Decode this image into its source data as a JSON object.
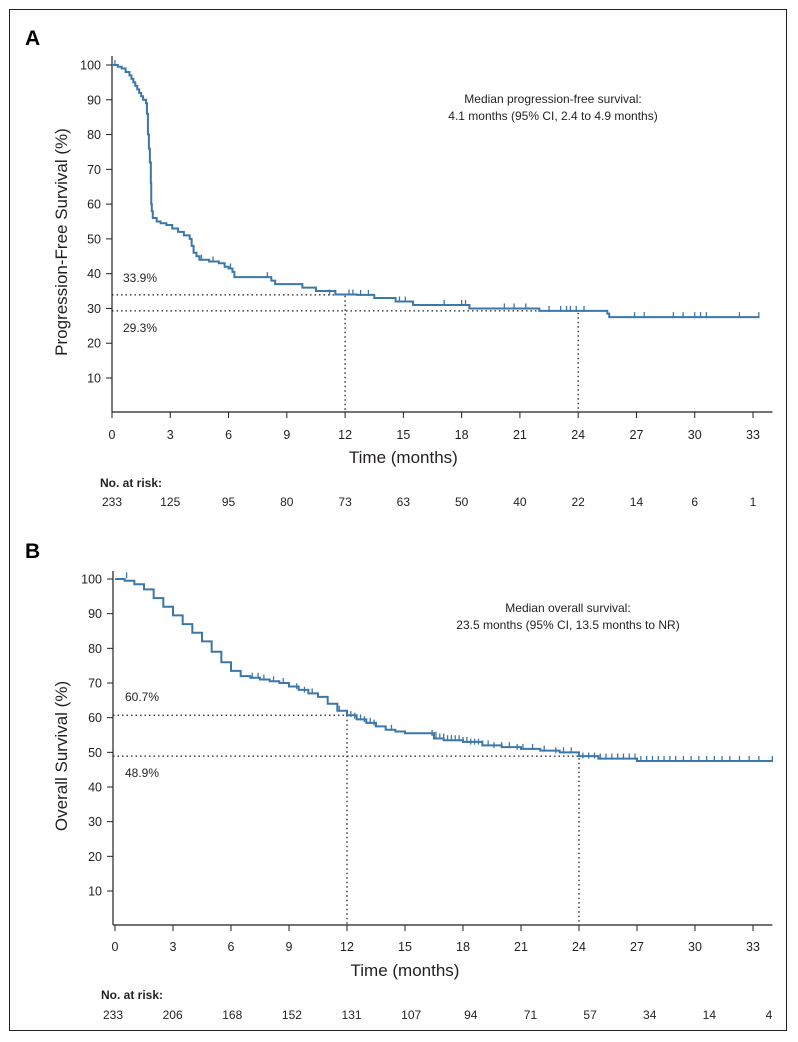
{
  "chart_data": [
    {
      "panel": "A",
      "type": "line",
      "subtype": "kaplan-meier",
      "ylabel": "Progression-Free Survival (%)",
      "xlabel": "Time (months)",
      "xlim": [
        0,
        34
      ],
      "ylim": [
        0,
        100
      ],
      "x_ticks": [
        0,
        3,
        6,
        9,
        12,
        15,
        18,
        21,
        24,
        27,
        30,
        33
      ],
      "y_ticks": [
        10,
        20,
        30,
        40,
        50,
        60,
        70,
        80,
        90,
        100
      ],
      "annotation": [
        "Median progression-free survival:",
        "4.1 months (95% CI, 2.4 to 4.9 months)"
      ],
      "reference_lines": [
        {
          "label": "33.9%",
          "y": 33.9,
          "x": 12
        },
        {
          "label": "29.3%",
          "y": 29.3,
          "x": 24
        }
      ],
      "curve": [
        [
          0,
          100
        ],
        [
          0.3,
          99.5
        ],
        [
          0.5,
          99
        ],
        [
          0.7,
          98
        ],
        [
          0.9,
          97
        ],
        [
          1.0,
          96
        ],
        [
          1.1,
          95
        ],
        [
          1.2,
          94
        ],
        [
          1.3,
          93
        ],
        [
          1.4,
          92
        ],
        [
          1.5,
          91
        ],
        [
          1.6,
          90
        ],
        [
          1.75,
          89
        ],
        [
          1.8,
          86
        ],
        [
          1.85,
          80
        ],
        [
          1.9,
          76
        ],
        [
          1.95,
          72
        ],
        [
          2.0,
          66
        ],
        [
          2.02,
          60
        ],
        [
          2.05,
          58
        ],
        [
          2.1,
          56
        ],
        [
          2.3,
          55
        ],
        [
          2.5,
          54.5
        ],
        [
          2.8,
          54
        ],
        [
          3.1,
          53
        ],
        [
          3.4,
          52
        ],
        [
          3.7,
          51
        ],
        [
          4.0,
          50
        ],
        [
          4.1,
          48
        ],
        [
          4.2,
          46
        ],
        [
          4.35,
          45
        ],
        [
          4.5,
          44
        ],
        [
          5.0,
          43.5
        ],
        [
          5.5,
          43
        ],
        [
          5.8,
          42
        ],
        [
          6.0,
          41.5
        ],
        [
          6.2,
          40.5
        ],
        [
          6.3,
          39
        ],
        [
          8.2,
          38
        ],
        [
          8.4,
          37
        ],
        [
          9.8,
          36
        ],
        [
          10.5,
          35
        ],
        [
          11.5,
          34
        ],
        [
          12.6,
          33.9
        ],
        [
          13.5,
          33
        ],
        [
          14.6,
          32
        ],
        [
          15.5,
          31
        ],
        [
          18.4,
          30
        ],
        [
          22.0,
          29.3
        ],
        [
          25.5,
          28.5
        ],
        [
          25.6,
          27.5
        ],
        [
          33.3,
          27.5
        ]
      ],
      "censors": [
        [
          0.15,
          100
        ],
        [
          4.6,
          44
        ],
        [
          5.2,
          43.5
        ],
        [
          6.1,
          41.5
        ],
        [
          8.0,
          39
        ],
        [
          11.2,
          34
        ],
        [
          12.2,
          34
        ],
        [
          12.4,
          34
        ],
        [
          12.8,
          33.9
        ],
        [
          13.2,
          33.9
        ],
        [
          14.8,
          32
        ],
        [
          15.1,
          32
        ],
        [
          17.1,
          31
        ],
        [
          18.0,
          31
        ],
        [
          18.2,
          31
        ],
        [
          20.2,
          30
        ],
        [
          20.7,
          30
        ],
        [
          21.3,
          30
        ],
        [
          22.5,
          29.3
        ],
        [
          23.1,
          29.3
        ],
        [
          23.4,
          29.3
        ],
        [
          23.6,
          29.3
        ],
        [
          23.9,
          29.3
        ],
        [
          24.3,
          29.3
        ],
        [
          26.9,
          27.5
        ],
        [
          27.4,
          27.5
        ],
        [
          28.9,
          27.5
        ],
        [
          29.4,
          27.5
        ],
        [
          30.0,
          27.5
        ],
        [
          30.3,
          27.5
        ],
        [
          30.6,
          27.5
        ],
        [
          32.3,
          27.5
        ],
        [
          33.3,
          27.5
        ]
      ],
      "risk_table": {
        "title": "No. at risk:",
        "numbers": [
          233,
          125,
          95,
          80,
          73,
          63,
          50,
          40,
          22,
          14,
          6,
          1
        ]
      }
    },
    {
      "panel": "B",
      "type": "line",
      "subtype": "kaplan-meier",
      "ylabel": "Overall Survival (%)",
      "xlabel": "Time (months)",
      "xlim": [
        0,
        34
      ],
      "ylim": [
        0,
        100
      ],
      "x_ticks": [
        0,
        3,
        6,
        9,
        12,
        15,
        18,
        21,
        24,
        27,
        30,
        33
      ],
      "y_ticks": [
        10,
        20,
        30,
        40,
        50,
        60,
        70,
        80,
        90,
        100
      ],
      "annotation": [
        "Median overall survival:",
        "23.5 months (95% CI, 13.5 months to NR)"
      ],
      "reference_lines": [
        {
          "label": "60.7%",
          "y": 60.7,
          "x": 12
        },
        {
          "label": "48.9%",
          "y": 48.9,
          "x": 24
        }
      ],
      "curve": [
        [
          0,
          100
        ],
        [
          0.5,
          99.5
        ],
        [
          1.0,
          98.5
        ],
        [
          1.5,
          97
        ],
        [
          2.0,
          94.5
        ],
        [
          2.5,
          92
        ],
        [
          3.0,
          89.5
        ],
        [
          3.5,
          87
        ],
        [
          4.0,
          84.5
        ],
        [
          4.5,
          82
        ],
        [
          5.0,
          79
        ],
        [
          5.5,
          76
        ],
        [
          6.0,
          73.5
        ],
        [
          6.5,
          72
        ],
        [
          7.0,
          71.5
        ],
        [
          7.5,
          71
        ],
        [
          8.0,
          70.5
        ],
        [
          8.5,
          70
        ],
        [
          9.0,
          69
        ],
        [
          9.5,
          68
        ],
        [
          10.0,
          67
        ],
        [
          10.5,
          66
        ],
        [
          11.0,
          64
        ],
        [
          11.5,
          62
        ],
        [
          12.0,
          60.7
        ],
        [
          12.5,
          59.5
        ],
        [
          13.0,
          58.5
        ],
        [
          13.5,
          57.5
        ],
        [
          14.0,
          56.5
        ],
        [
          14.5,
          56
        ],
        [
          15.0,
          55.5
        ],
        [
          16.0,
          55.5
        ],
        [
          16.5,
          54
        ],
        [
          17.0,
          53.5
        ],
        [
          18.0,
          53
        ],
        [
          19.0,
          52
        ],
        [
          20.0,
          51.5
        ],
        [
          21.0,
          51
        ],
        [
          22.0,
          50.5
        ],
        [
          23.0,
          50
        ],
        [
          24.0,
          48.9
        ],
        [
          25.0,
          48.2
        ],
        [
          27.0,
          47.5
        ],
        [
          34.0,
          47.5
        ]
      ],
      "censors": [
        [
          0.6,
          100.5
        ],
        [
          7.1,
          71.5
        ],
        [
          7.4,
          71.5
        ],
        [
          7.7,
          71
        ],
        [
          8.2,
          70.5
        ],
        [
          8.7,
          70
        ],
        [
          9.4,
          68.5
        ],
        [
          9.8,
          67.5
        ],
        [
          10.2,
          67
        ],
        [
          11.6,
          62
        ],
        [
          12.2,
          60.5
        ],
        [
          12.4,
          60
        ],
        [
          12.7,
          59.5
        ],
        [
          12.9,
          59
        ],
        [
          13.2,
          58.5
        ],
        [
          13.4,
          58
        ],
        [
          14.3,
          56.5
        ],
        [
          16.4,
          55
        ],
        [
          16.6,
          54.5
        ],
        [
          16.8,
          54
        ],
        [
          17.0,
          54
        ],
        [
          17.2,
          53.5
        ],
        [
          17.4,
          53.5
        ],
        [
          17.6,
          53.5
        ],
        [
          17.8,
          53.5
        ],
        [
          18.0,
          53
        ],
        [
          18.2,
          53
        ],
        [
          18.4,
          52.5
        ],
        [
          18.6,
          52.5
        ],
        [
          18.8,
          52.5
        ],
        [
          19.0,
          52
        ],
        [
          19.3,
          52
        ],
        [
          19.6,
          51.5
        ],
        [
          20.0,
          51.5
        ],
        [
          20.4,
          51.5
        ],
        [
          20.8,
          51
        ],
        [
          21.1,
          51
        ],
        [
          21.6,
          51
        ],
        [
          22.2,
          50.5
        ],
        [
          22.8,
          50
        ],
        [
          23.2,
          50
        ],
        [
          23.6,
          50
        ],
        [
          24.2,
          48.5
        ],
        [
          24.5,
          48.5
        ],
        [
          24.8,
          48.5
        ],
        [
          25.1,
          48.2
        ],
        [
          25.4,
          48.2
        ],
        [
          25.7,
          48.2
        ],
        [
          26.0,
          48.2
        ],
        [
          26.3,
          48.2
        ],
        [
          26.6,
          48.2
        ],
        [
          26.9,
          48.2
        ],
        [
          27.2,
          47.5
        ],
        [
          27.5,
          47.5
        ],
        [
          27.8,
          47.5
        ],
        [
          28.1,
          47.5
        ],
        [
          28.4,
          47.5
        ],
        [
          28.7,
          47.5
        ],
        [
          29.0,
          47.5
        ],
        [
          29.4,
          47.5
        ],
        [
          29.8,
          47.5
        ],
        [
          30.2,
          47.5
        ],
        [
          30.6,
          47.5
        ],
        [
          31.0,
          47.5
        ],
        [
          31.4,
          47.5
        ],
        [
          31.8,
          47.5
        ],
        [
          32.3,
          47.5
        ],
        [
          32.8,
          47.5
        ],
        [
          33.3,
          47.5
        ],
        [
          34.0,
          47.5
        ]
      ],
      "risk_table": {
        "title": "No. at risk:",
        "numbers": [
          233,
          206,
          168,
          152,
          131,
          107,
          94,
          71,
          57,
          34,
          14,
          4
        ]
      }
    }
  ]
}
